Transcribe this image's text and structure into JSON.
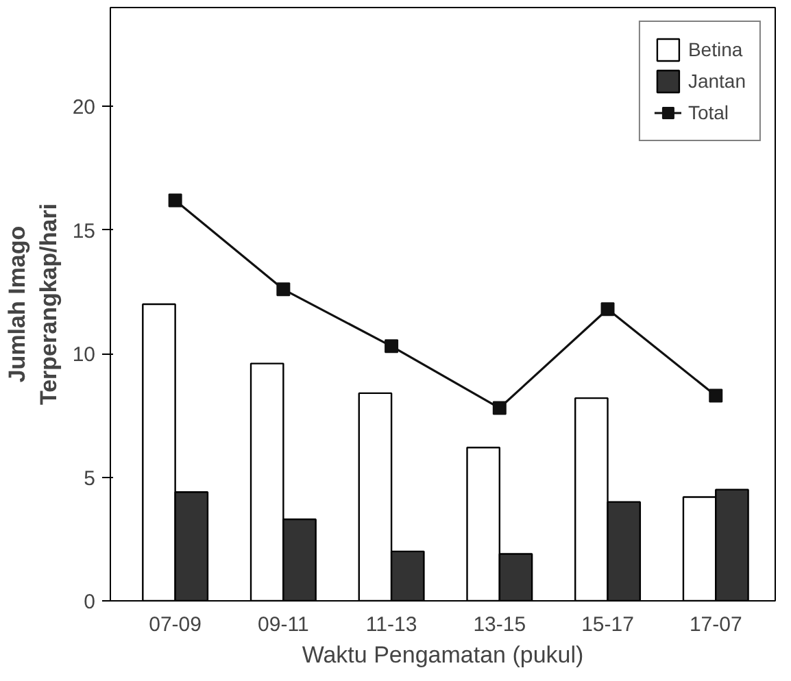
{
  "chart_data": {
    "type": "bar",
    "xlabel": "Waktu Pengamatan (pukul)",
    "ylabel": "Jumlah Imago\nTerperangkap/hari",
    "categories": [
      "07-09",
      "09-11",
      "11-13",
      "13-15",
      "15-17",
      "17-07"
    ],
    "ylim": [
      0,
      24
    ],
    "yticks": [
      0,
      5,
      10,
      15,
      20
    ],
    "grid": false,
    "legend": "top right",
    "series": [
      {
        "name": "Betina",
        "color": "#ffffff",
        "values": [
          12.0,
          9.6,
          8.4,
          6.2,
          8.2,
          4.2
        ]
      },
      {
        "name": "Jantan",
        "color": "#333333",
        "values": [
          4.4,
          3.3,
          2.0,
          1.9,
          4.0,
          4.5
        ]
      },
      {
        "name": "Total",
        "type": "line",
        "color": "#111111",
        "marker": "square",
        "values": [
          16.2,
          12.6,
          10.3,
          7.8,
          11.8,
          8.3
        ]
      }
    ]
  }
}
